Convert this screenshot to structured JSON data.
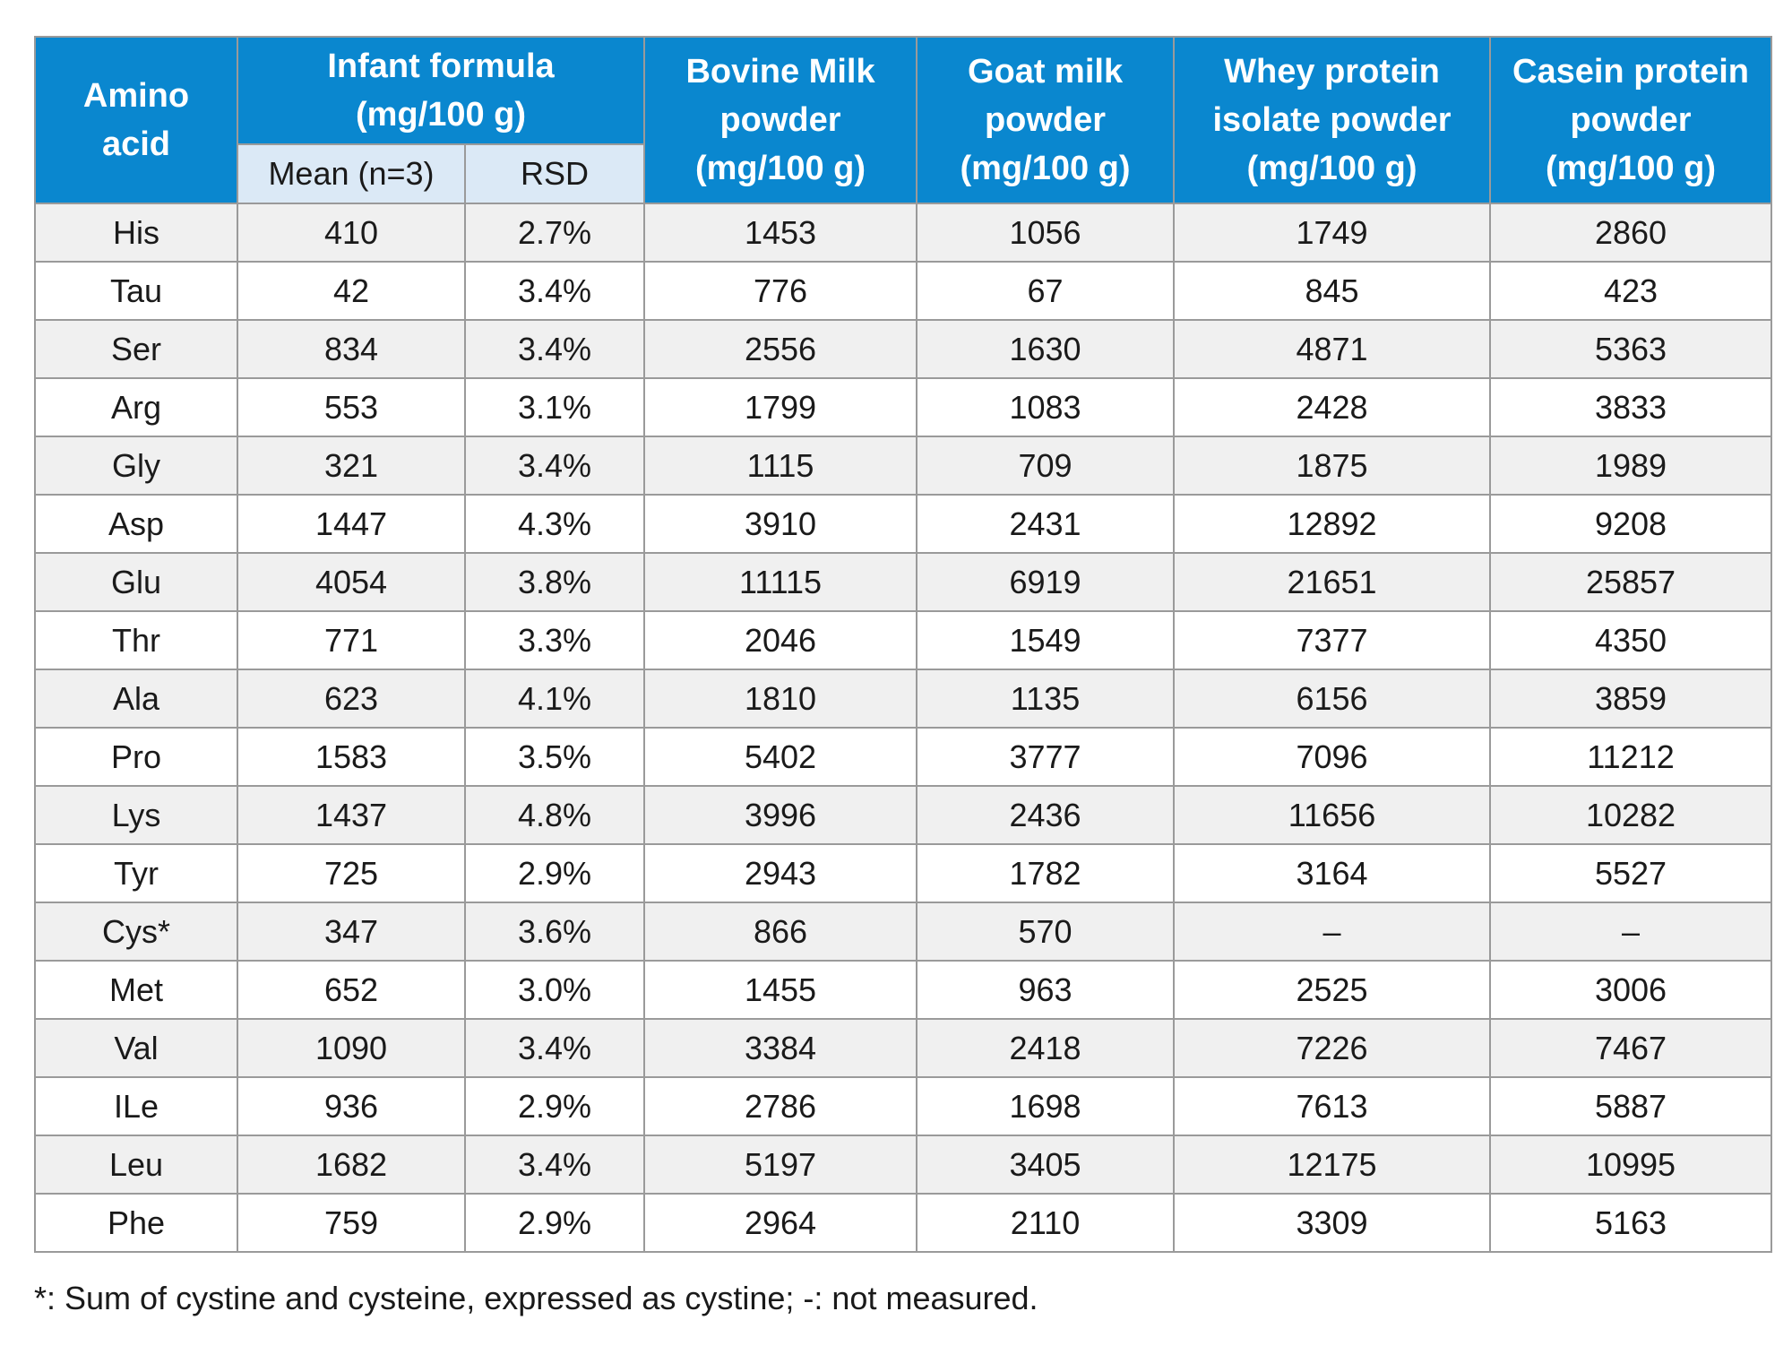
{
  "header": {
    "amino_acid": [
      "Amino",
      "acid"
    ],
    "infant_formula": [
      "Infant formula",
      "(mg/100 g)"
    ],
    "mean": "Mean (n=3)",
    "rsd": "RSD",
    "bovine": [
      "Bovine Milk",
      "powder",
      "(mg/100 g)"
    ],
    "goat": [
      "Goat milk",
      "powder",
      "(mg/100 g)"
    ],
    "whey": [
      "Whey protein",
      "isolate powder",
      "(mg/100 g)"
    ],
    "casein": [
      "Casein protein",
      "powder",
      "(mg/100 g)"
    ]
  },
  "rows": [
    {
      "amino": "His",
      "mean": "410",
      "rsd": "2.7%",
      "bovine": "1453",
      "goat": "1056",
      "whey": "1749",
      "casein": "2860"
    },
    {
      "amino": "Tau",
      "mean": "42",
      "rsd": "3.4%",
      "bovine": "776",
      "goat": "67",
      "whey": "845",
      "casein": "423"
    },
    {
      "amino": "Ser",
      "mean": "834",
      "rsd": "3.4%",
      "bovine": "2556",
      "goat": "1630",
      "whey": "4871",
      "casein": "5363"
    },
    {
      "amino": "Arg",
      "mean": "553",
      "rsd": "3.1%",
      "bovine": "1799",
      "goat": "1083",
      "whey": "2428",
      "casein": "3833"
    },
    {
      "amino": "Gly",
      "mean": "321",
      "rsd": "3.4%",
      "bovine": "1115",
      "goat": "709",
      "whey": "1875",
      "casein": "1989"
    },
    {
      "amino": "Asp",
      "mean": "1447",
      "rsd": "4.3%",
      "bovine": "3910",
      "goat": "2431",
      "whey": "12892",
      "casein": "9208"
    },
    {
      "amino": "Glu",
      "mean": "4054",
      "rsd": "3.8%",
      "bovine": "11115",
      "goat": "6919",
      "whey": "21651",
      "casein": "25857"
    },
    {
      "amino": "Thr",
      "mean": "771",
      "rsd": "3.3%",
      "bovine": "2046",
      "goat": "1549",
      "whey": "7377",
      "casein": "4350"
    },
    {
      "amino": "Ala",
      "mean": "623",
      "rsd": "4.1%",
      "bovine": "1810",
      "goat": "1135",
      "whey": "6156",
      "casein": "3859"
    },
    {
      "amino": "Pro",
      "mean": "1583",
      "rsd": "3.5%",
      "bovine": "5402",
      "goat": "3777",
      "whey": "7096",
      "casein": "11212"
    },
    {
      "amino": "Lys",
      "mean": "1437",
      "rsd": "4.8%",
      "bovine": "3996",
      "goat": "2436",
      "whey": "11656",
      "casein": "10282"
    },
    {
      "amino": "Tyr",
      "mean": "725",
      "rsd": "2.9%",
      "bovine": "2943",
      "goat": "1782",
      "whey": "3164",
      "casein": "5527"
    },
    {
      "amino": "Cys*",
      "mean": "347",
      "rsd": "3.6%",
      "bovine": "866",
      "goat": "570",
      "whey": "–",
      "casein": "–"
    },
    {
      "amino": "Met",
      "mean": "652",
      "rsd": "3.0%",
      "bovine": "1455",
      "goat": "963",
      "whey": "2525",
      "casein": "3006"
    },
    {
      "amino": "Val",
      "mean": "1090",
      "rsd": "3.4%",
      "bovine": "3384",
      "goat": "2418",
      "whey": "7226",
      "casein": "7467"
    },
    {
      "amino": "ILe",
      "mean": "936",
      "rsd": "2.9%",
      "bovine": "2786",
      "goat": "1698",
      "whey": "7613",
      "casein": "5887"
    },
    {
      "amino": "Leu",
      "mean": "1682",
      "rsd": "3.4%",
      "bovine": "5197",
      "goat": "3405",
      "whey": "12175",
      "casein": "10995"
    },
    {
      "amino": "Phe",
      "mean": "759",
      "rsd": "2.9%",
      "bovine": "2964",
      "goat": "2110",
      "whey": "3309",
      "casein": "5163"
    }
  ],
  "footnote": "*: Sum of cystine and cysteine, expressed as cystine; -: not measured.",
  "colors": {
    "header_bg": "#0a87cf",
    "subheader_bg": "#dbe9f6",
    "stripe_bg": "#f0f0f0",
    "border": "#9a9a9a"
  }
}
